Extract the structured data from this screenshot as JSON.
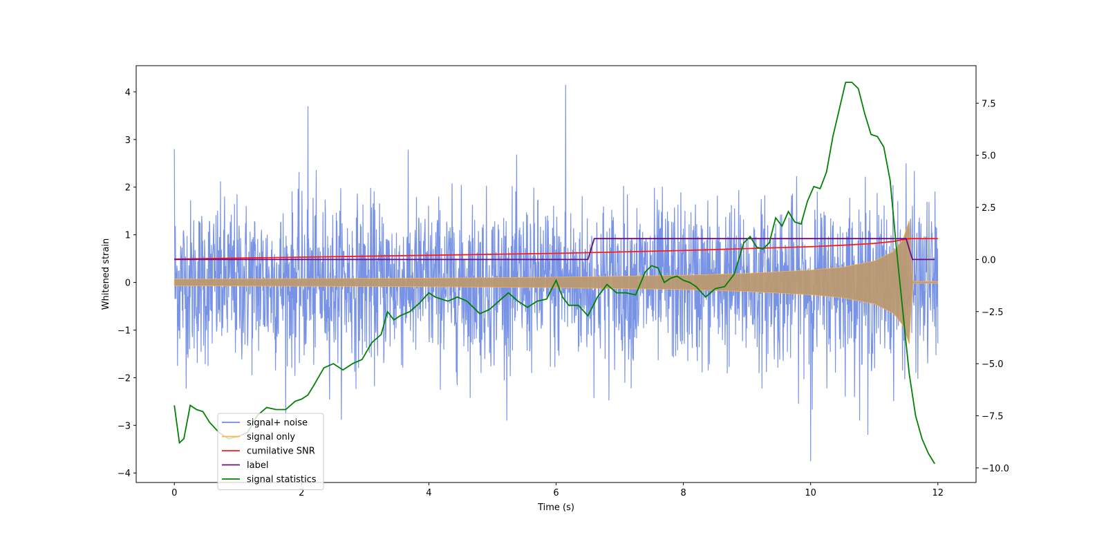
{
  "chart_data": {
    "type": "line",
    "title": "",
    "xlabel": "Time (s)",
    "ylabel_left": "Whitened strain",
    "ylabel_right": "",
    "xlim": [
      -0.6,
      12.6
    ],
    "ylim_left": [
      -4.2,
      4.55
    ],
    "ylim_right": [
      -10.7,
      9.3
    ],
    "x_ticks": [
      0,
      2,
      4,
      6,
      8,
      10,
      12
    ],
    "x_tick_labels": [
      "0",
      "2",
      "4",
      "6",
      "8",
      "10",
      "12"
    ],
    "y_left_ticks": [
      -4,
      -3,
      -2,
      -1,
      0,
      1,
      2,
      3,
      4
    ],
    "y_left_tick_labels": [
      "−4",
      "−3",
      "−2",
      "−1",
      "0",
      "1",
      "2",
      "3",
      "4"
    ],
    "y_right_ticks": [
      -10,
      -7.5,
      -5,
      -2.5,
      0,
      2.5,
      5,
      7.5
    ],
    "y_right_tick_labels": [
      "−10.0",
      "−7.5",
      "−5.0",
      "−2.5",
      "0.0",
      "2.5",
      "5.0",
      "7.5"
    ],
    "grid": false,
    "legend_position": "lower-left",
    "series": [
      {
        "name": "signal+ noise",
        "axis": "left",
        "color": "#6c8ae4",
        "kind": "noise_band",
        "x_start": 0,
        "x_end": 12,
        "typical_range": [
          -1.5,
          1.5
        ],
        "peaks": [
          [
            0.0,
            2.8
          ],
          [
            2.1,
            3.7
          ],
          [
            6.15,
            4.15
          ],
          [
            10.0,
            -3.75
          ],
          [
            10.9,
            -3.2
          ],
          [
            11.5,
            2.5
          ]
        ]
      },
      {
        "name": "signal only",
        "axis": "left",
        "color": "#ffb347",
        "kind": "chirp_envelope",
        "x": [
          0,
          2,
          4,
          6,
          8,
          9,
          10,
          10.5,
          11,
          11.3,
          11.45,
          11.55,
          11.6,
          12
        ],
        "amplitude": [
          0.07,
          0.08,
          0.09,
          0.11,
          0.15,
          0.19,
          0.26,
          0.32,
          0.45,
          0.65,
          0.9,
          1.3,
          0.02,
          0.02
        ]
      },
      {
        "name": "cumilative SNR",
        "axis": "left",
        "color": "#ff1a1a",
        "x": [
          0,
          2,
          4,
          6,
          8,
          9,
          10,
          10.5,
          11,
          11.3,
          11.5,
          11.55,
          12
        ],
        "y": [
          0.49,
          0.53,
          0.57,
          0.61,
          0.67,
          0.71,
          0.75,
          0.78,
          0.82,
          0.86,
          0.91,
          0.92,
          0.92
        ]
      },
      {
        "name": "label",
        "axis": "right",
        "color": "#6a0d83",
        "x": [
          0,
          6.5,
          6.6,
          11.5,
          11.6,
          11.95
        ],
        "y": [
          0,
          0,
          1,
          1,
          0,
          0
        ]
      },
      {
        "name": "signal statistics",
        "axis": "right",
        "color": "#008000",
        "x": [
          0,
          0.08,
          0.15,
          0.25,
          0.35,
          0.45,
          0.55,
          0.7,
          0.85,
          1.0,
          1.15,
          1.3,
          1.45,
          1.6,
          1.75,
          1.9,
          2.0,
          2.1,
          2.2,
          2.35,
          2.5,
          2.65,
          2.8,
          2.95,
          3.1,
          3.25,
          3.35,
          3.45,
          3.55,
          3.7,
          3.85,
          4.0,
          4.1,
          4.2,
          4.3,
          4.45,
          4.6,
          4.7,
          4.8,
          4.95,
          5.1,
          5.25,
          5.4,
          5.55,
          5.7,
          5.85,
          6.0,
          6.1,
          6.2,
          6.35,
          6.5,
          6.65,
          6.8,
          6.95,
          7.1,
          7.25,
          7.4,
          7.5,
          7.6,
          7.7,
          7.8,
          7.9,
          8.0,
          8.1,
          8.2,
          8.35,
          8.5,
          8.65,
          8.8,
          8.95,
          9.05,
          9.15,
          9.25,
          9.35,
          9.45,
          9.55,
          9.65,
          9.75,
          9.85,
          9.95,
          10.05,
          10.15,
          10.25,
          10.35,
          10.45,
          10.55,
          10.65,
          10.75,
          10.85,
          10.95,
          11.05,
          11.15,
          11.25,
          11.35,
          11.45,
          11.55,
          11.65,
          11.75,
          11.85,
          11.95
        ],
        "y": [
          -7.0,
          -8.8,
          -8.6,
          -7.0,
          -7.2,
          -7.3,
          -7.8,
          -8.3,
          -8.6,
          -8.5,
          -8.3,
          -7.5,
          -7.1,
          -7.2,
          -7.2,
          -6.8,
          -6.7,
          -6.5,
          -6.0,
          -5.2,
          -5.0,
          -5.3,
          -5.0,
          -4.8,
          -4.0,
          -3.6,
          -2.5,
          -2.9,
          -2.7,
          -2.5,
          -2.1,
          -1.6,
          -1.8,
          -1.9,
          -2.0,
          -1.8,
          -2.0,
          -2.3,
          -2.6,
          -2.4,
          -2.0,
          -1.6,
          -2.0,
          -2.3,
          -2.0,
          -1.9,
          -1.0,
          -1.8,
          -2.2,
          -2.2,
          -2.7,
          -1.8,
          -1.2,
          -1.6,
          -1.6,
          -1.7,
          -0.6,
          -0.3,
          -0.4,
          -1.1,
          -0.9,
          -0.8,
          -1.0,
          -1.1,
          -1.3,
          -1.8,
          -1.4,
          -1.3,
          -0.7,
          0.8,
          1.1,
          0.6,
          0.5,
          0.8,
          2.0,
          1.6,
          2.3,
          1.8,
          1.7,
          2.8,
          3.5,
          3.4,
          4.2,
          5.9,
          7.2,
          8.5,
          8.5,
          8.2,
          7.0,
          6.0,
          5.9,
          5.4,
          3.8,
          0.5,
          -2.5,
          -5.5,
          -7.5,
          -8.6,
          -9.3,
          -9.8
        ]
      }
    ]
  }
}
